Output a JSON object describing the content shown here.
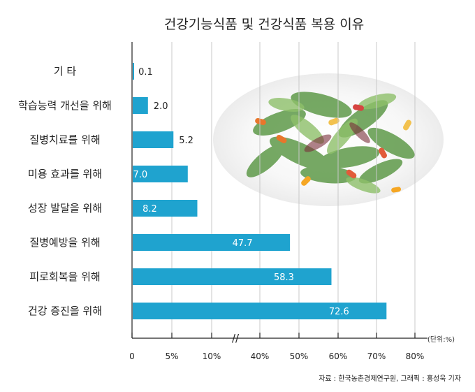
{
  "chart_data": {
    "type": "bar",
    "orientation": "horizontal",
    "title": "건강기능식품 및 건강식품 복용 이유",
    "categories": [
      "기 타",
      "학습능력 개선을 위해",
      "질병치료를 위해",
      "미용 효과를 위해",
      "성장 발달을 위해",
      "질병예방을 위해",
      "피로회복을 위해",
      "건강 증진을 위해"
    ],
    "values": [
      0.1,
      2.0,
      5.2,
      7.0,
      8.2,
      47.7,
      58.3,
      72.6
    ],
    "value_labels": [
      "0.1",
      "2.0",
      "5.2",
      "7.0",
      "8.2",
      "47.7",
      "58.3",
      "72.6"
    ],
    "x_ticks": [
      "0",
      "5%",
      "10%",
      "40%",
      "50%",
      "60%",
      "70%",
      "80%"
    ],
    "axis_break": "//",
    "unit": "(단위:%)",
    "source": "자료 : 한국농촌경제연구원, 그래픽 : 홍성욱 기자",
    "grid": true,
    "bar_color": "#1fa3cf"
  }
}
